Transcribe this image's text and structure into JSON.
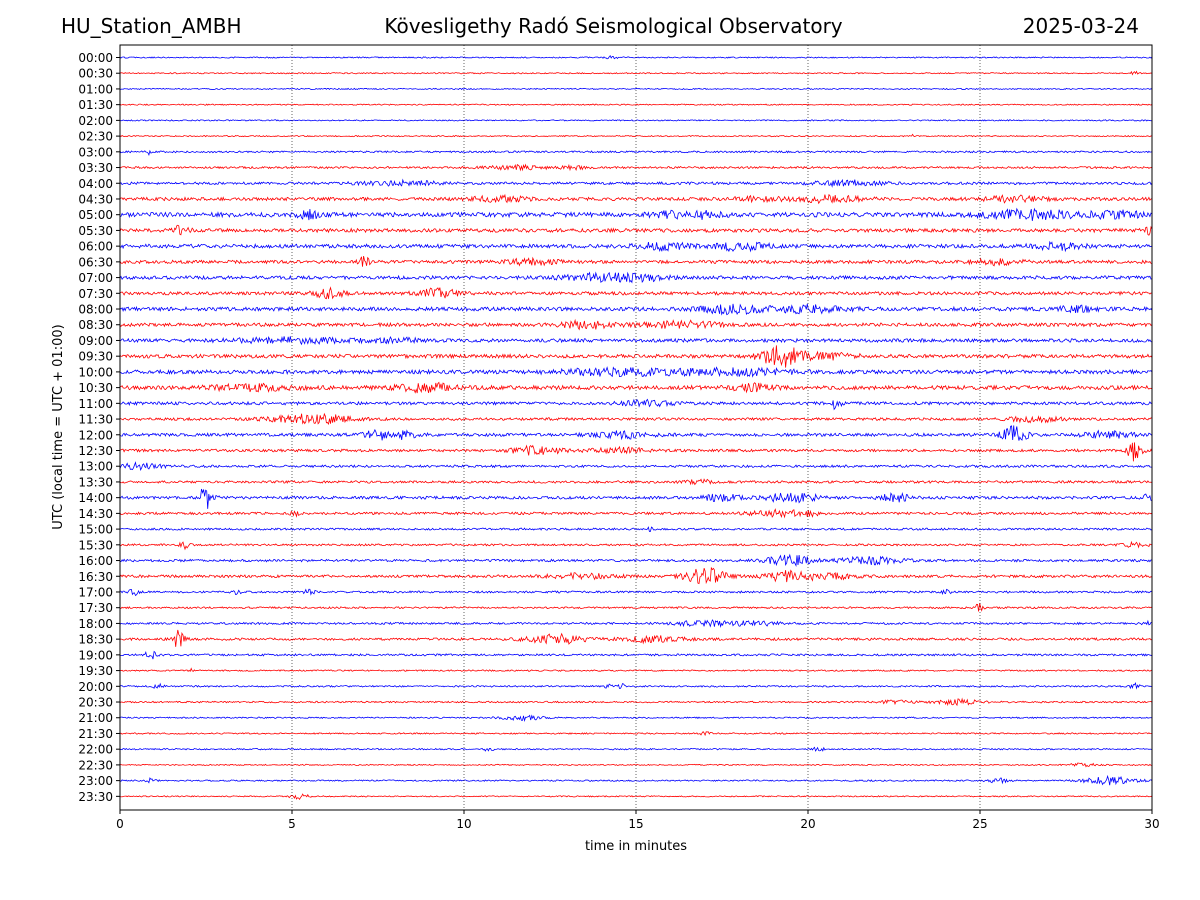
{
  "header": {
    "station": "HU_Station_AMBH",
    "title": "Kövesligethy Radó Seismological Observatory",
    "date": "2025-03-24"
  },
  "chart_data": {
    "type": "line",
    "xlabel": "time in minutes",
    "ylabel": "UTC (local time = UTC + 01:00)",
    "xlim": [
      0,
      30
    ],
    "xticks": [
      0,
      5,
      10,
      15,
      20,
      25,
      30
    ],
    "vertical_gridlines_at": [
      5,
      10,
      15,
      20,
      25
    ],
    "grid": "vertical dotted",
    "row_colors": [
      "#0000ff",
      "#ff0000"
    ],
    "rows": [
      "00:00",
      "00:30",
      "01:00",
      "01:30",
      "02:00",
      "02:30",
      "03:00",
      "03:30",
      "04:00",
      "04:30",
      "05:00",
      "05:30",
      "06:00",
      "06:30",
      "07:00",
      "07:30",
      "08:00",
      "08:30",
      "09:00",
      "09:30",
      "10:00",
      "10:30",
      "11:00",
      "11:30",
      "12:00",
      "12:30",
      "13:00",
      "13:30",
      "14:00",
      "14:30",
      "15:00",
      "15:30",
      "16:00",
      "16:30",
      "17:00",
      "17:30",
      "18:00",
      "18:30",
      "19:00",
      "19:30",
      "20:00",
      "20:30",
      "21:00",
      "21:30",
      "22:00",
      "22:30",
      "23:00",
      "23:30"
    ],
    "noise_level": [
      0.6,
      0.6,
      0.6,
      0.6,
      0.6,
      0.6,
      0.9,
      1.0,
      1.3,
      1.6,
      2.2,
      1.8,
      1.9,
      1.6,
      1.7,
      1.6,
      1.9,
      1.7,
      1.7,
      1.8,
      1.9,
      2.0,
      1.5,
      1.3,
      1.5,
      1.3,
      1.2,
      1.2,
      1.4,
      1.2,
      1.0,
      1.0,
      1.2,
      1.3,
      1.0,
      0.9,
      1.0,
      1.2,
      1.0,
      0.7,
      0.8,
      0.8,
      0.7,
      0.7,
      0.7,
      0.6,
      0.7,
      0.6
    ],
    "events": [
      [
        [
          14.3,
          0.15,
          1.5
        ]
      ],
      [
        [
          29.5,
          0.1,
          1.5
        ]
      ],
      [],
      [],
      [],
      [
        [
          23,
          0.1,
          1.2
        ]
      ],
      [
        [
          0.8,
          0.05,
          3
        ]
      ],
      [
        [
          11.5,
          0.6,
          2
        ],
        [
          13.2,
          0.3,
          1.5
        ]
      ],
      [
        [
          8.2,
          0.8,
          2
        ],
        [
          21.2,
          0.7,
          2.5
        ]
      ],
      [
        [
          11,
          0.6,
          2.5
        ],
        [
          18.5,
          0.5,
          2
        ],
        [
          20.6,
          0.7,
          3
        ],
        [
          26,
          0.6,
          2.5
        ]
      ],
      [
        [
          5.5,
          0.2,
          3.5
        ],
        [
          16.5,
          0.6,
          4
        ],
        [
          26.5,
          1.0,
          4
        ],
        [
          29,
          0.5,
          3
        ]
      ],
      [
        [
          1.7,
          0.2,
          3.5
        ],
        [
          29.9,
          0.1,
          3
        ]
      ],
      [
        [
          15.7,
          0.5,
          3.5
        ],
        [
          18,
          0.6,
          3.5
        ],
        [
          27.3,
          0.5,
          3
        ]
      ],
      [
        [
          7.1,
          0.1,
          5
        ],
        [
          12,
          0.5,
          3
        ],
        [
          25.5,
          0.5,
          2.5
        ]
      ],
      [
        [
          13.9,
          0.7,
          3.5
        ],
        [
          15.2,
          0.5,
          2.5
        ]
      ],
      [
        [
          6.1,
          0.3,
          4.5
        ],
        [
          9.3,
          0.4,
          4.5
        ]
      ],
      [
        [
          17.8,
          0.6,
          4
        ],
        [
          20,
          0.7,
          3.5
        ],
        [
          27.8,
          0.4,
          2.5
        ]
      ],
      [
        [
          13.6,
          0.5,
          3.5
        ],
        [
          16.3,
          0.8,
          3
        ]
      ],
      [
        [
          5,
          1.2,
          2.5
        ],
        [
          8,
          0.5,
          2
        ]
      ],
      [
        [
          19.2,
          0.4,
          10
        ],
        [
          20.5,
          0.6,
          3
        ]
      ],
      [
        [
          14.4,
          1.2,
          3
        ],
        [
          17.8,
          1.2,
          3
        ]
      ],
      [
        [
          3.8,
          0.8,
          2.5
        ],
        [
          8.9,
          0.6,
          4
        ],
        [
          18.4,
          0.4,
          3
        ]
      ],
      [
        [
          15.3,
          0.5,
          2.5
        ],
        [
          20.8,
          0.1,
          5
        ]
      ],
      [
        [
          5.6,
          0.8,
          5
        ],
        [
          26.6,
          0.5,
          2.5
        ]
      ],
      [
        [
          7.8,
          0.5,
          5
        ],
        [
          14.6,
          0.6,
          3
        ],
        [
          26,
          0.25,
          8
        ],
        [
          28.7,
          0.5,
          3
        ]
      ],
      [
        [
          12.1,
          0.5,
          4
        ],
        [
          14.5,
          0.6,
          2.5
        ],
        [
          29.5,
          0.15,
          10
        ]
      ],
      [
        [
          0.4,
          0.3,
          3
        ],
        [
          1.0,
          0.2,
          2
        ]
      ],
      [
        [
          16.8,
          0.3,
          2
        ]
      ],
      [
        [
          2.5,
          0.15,
          11
        ],
        [
          17.5,
          0.4,
          3
        ],
        [
          19.5,
          0.6,
          4
        ],
        [
          22.5,
          0.3,
          4
        ],
        [
          29.9,
          0.1,
          4
        ]
      ],
      [
        [
          5.1,
          0.1,
          2
        ],
        [
          19.2,
          0.6,
          3
        ],
        [
          20.1,
          0.1,
          3
        ]
      ],
      [
        [
          15.4,
          0.1,
          2.5
        ]
      ],
      [
        [
          1.9,
          0.1,
          4
        ],
        [
          29.5,
          0.3,
          2
        ]
      ],
      [
        [
          19.5,
          0.5,
          5
        ],
        [
          21.8,
          0.6,
          3.5
        ]
      ],
      [
        [
          13.5,
          0.8,
          2.5
        ],
        [
          17,
          0.4,
          8
        ],
        [
          19.3,
          0.4,
          4.5
        ],
        [
          20.5,
          0.6,
          3
        ]
      ],
      [
        [
          0.4,
          0.1,
          3
        ],
        [
          3.4,
          0.1,
          2.5
        ],
        [
          5.5,
          0.1,
          3
        ],
        [
          24,
          0.1,
          2
        ]
      ],
      [
        [
          25,
          0.1,
          5
        ]
      ],
      [
        [
          17,
          0.6,
          2.5
        ],
        [
          18.5,
          0.5,
          2
        ],
        [
          29.9,
          0.1,
          3
        ]
      ],
      [
        [
          1.7,
          0.12,
          9
        ],
        [
          12.7,
          0.6,
          4.5
        ],
        [
          15.5,
          0.6,
          3
        ]
      ],
      [
        [
          0.9,
          0.12,
          4
        ]
      ],
      [
        [
          2.1,
          0.05,
          2
        ]
      ],
      [
        [
          1.1,
          0.1,
          2.5
        ],
        [
          14.2,
          0.1,
          2
        ],
        [
          14.6,
          0.1,
          2
        ],
        [
          29.5,
          0.1,
          2.5
        ]
      ],
      [
        [
          22.6,
          0.3,
          2
        ],
        [
          24.4,
          0.5,
          2.5
        ]
      ],
      [
        [
          11.7,
          0.4,
          2.5
        ]
      ],
      [
        [
          17,
          0.1,
          2
        ]
      ],
      [
        [
          10.7,
          0.1,
          2
        ],
        [
          20.3,
          0.1,
          3
        ]
      ],
      [
        [
          28,
          0.3,
          1.5
        ]
      ],
      [
        [
          0.9,
          0.1,
          2.5
        ],
        [
          25.5,
          0.2,
          2.5
        ],
        [
          28.8,
          0.5,
          4
        ]
      ],
      [
        [
          5.2,
          0.2,
          2.5
        ]
      ]
    ]
  }
}
